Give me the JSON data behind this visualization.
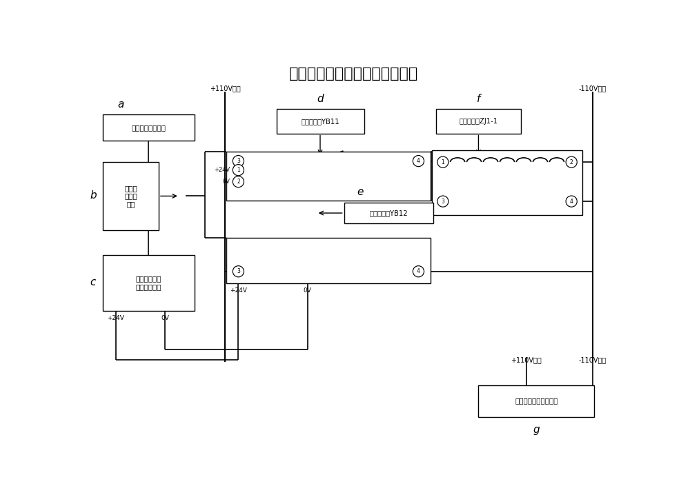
{
  "title": "远控重启变电站远动管理机系统",
  "title_fontsize": 16,
  "box_a_text": "监控中心五防系统",
  "box_b_text": "五防闭\n锁光纤\n通道",
  "box_c_text": "变电站五防闭\n锁遥闭控制器",
  "box_d_text": "逻闸继电器YB11",
  "box_e_text": "逻闸继电器YB12",
  "box_f_text": "出口继电器ZJ1-1",
  "box_g_text": "变电站远动通讯管理机",
  "plus110_top": "+110V电源",
  "minus110_top": "-110V电源",
  "plus110_bot": "+110V电源",
  "minus110_bot": "-110V电源",
  "plus24v_upper": "+24V",
  "ov_upper": "0V",
  "plus24v_lower": "+24V",
  "ov_lower": "0V",
  "plus24v_c": "+24V",
  "ov_c": "0V",
  "label_a": "a",
  "label_b": "b",
  "label_c": "c",
  "label_d": "d",
  "label_e": "e",
  "label_f": "f",
  "label_g": "g"
}
